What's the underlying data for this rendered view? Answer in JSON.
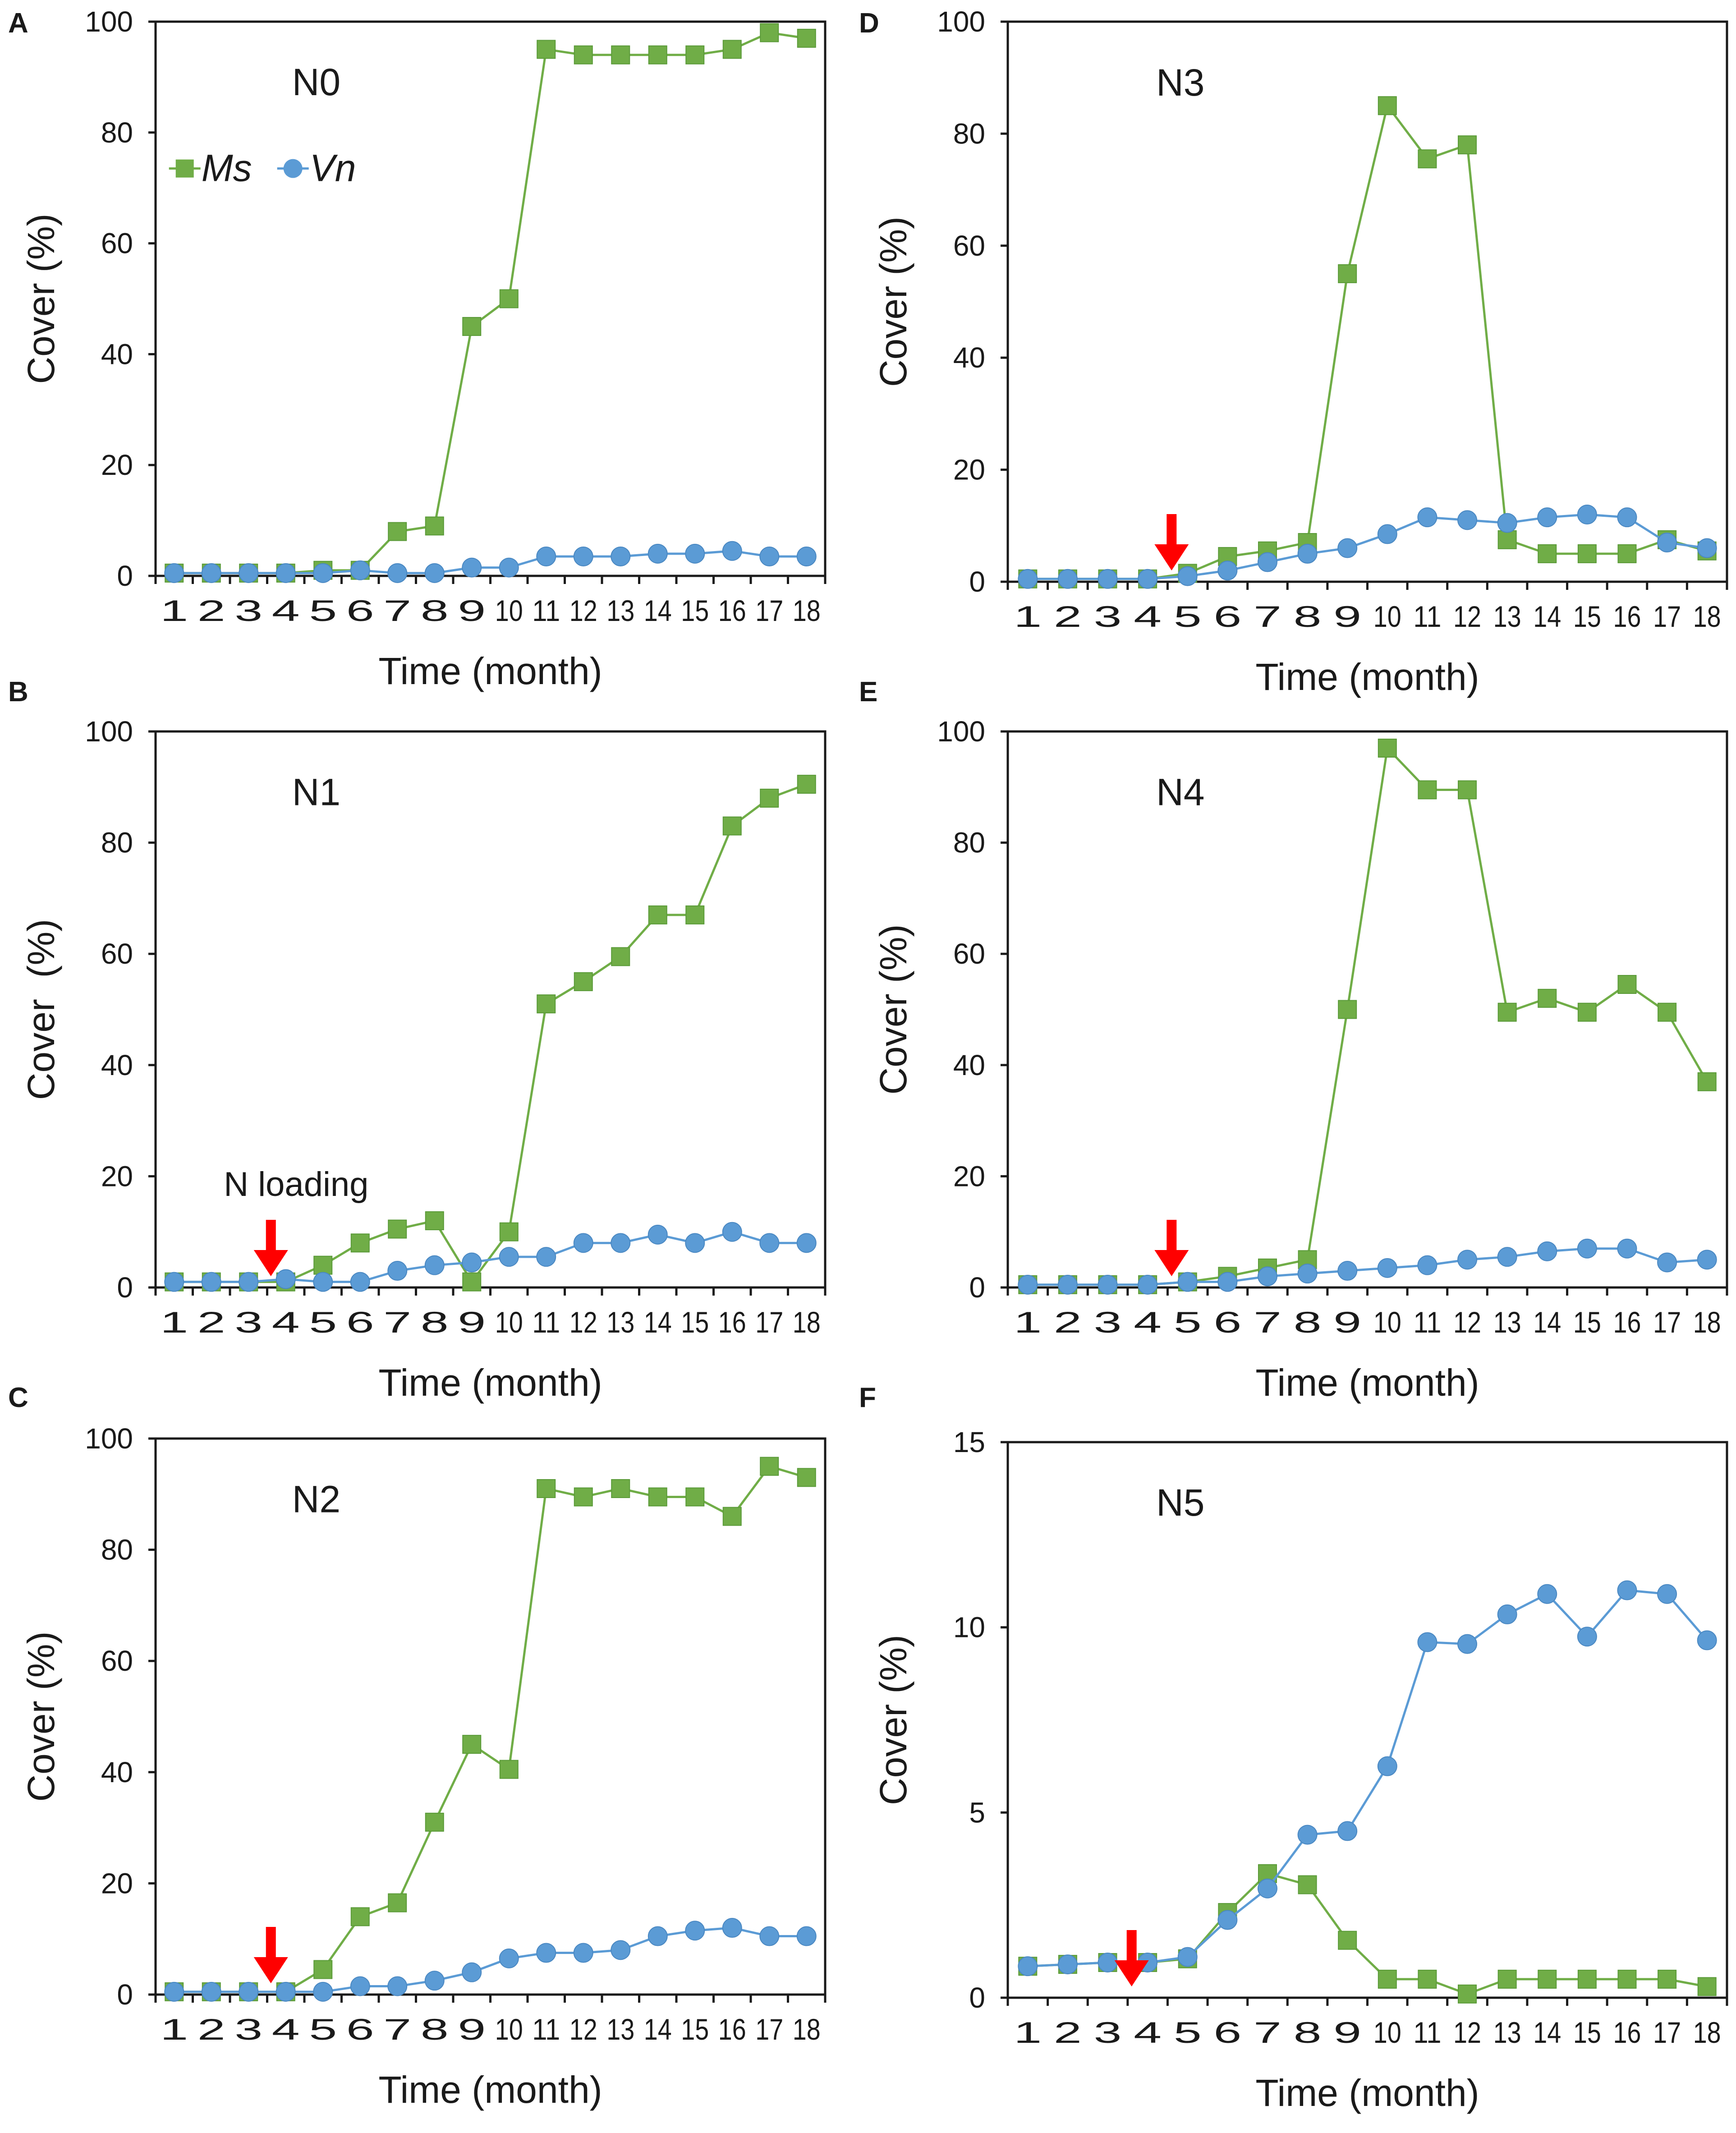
{
  "colors": {
    "ms": "#70ad47",
    "ms_edge": "#5a9a38",
    "vn": "#5b9bd5",
    "vn_edge": "#4a88c2",
    "arrow": "#ff0000",
    "axis": "#1a1a1a"
  },
  "legend": {
    "ms": "Ms",
    "vn": "Vn"
  },
  "annotation_text": "N loading",
  "chart_data": [
    {
      "type": "line",
      "panel": "A",
      "title": "N0",
      "xlabel": "Time (month)",
      "ylabel": "Cover (%)",
      "ylim": [
        0,
        100
      ],
      "yticks": [
        0,
        20,
        40,
        60,
        80,
        100
      ],
      "ytick_labels": [
        "0",
        "20",
        "40",
        "60",
        "80",
        "100"
      ],
      "categories": [
        "1",
        "2",
        "3",
        "4",
        "5",
        "6",
        "7",
        "8",
        "9",
        "10",
        "11",
        "12",
        "13",
        "14",
        "15",
        "16",
        "17",
        "18"
      ],
      "legend": true,
      "arrow_at": null,
      "series": [
        {
          "name": "Ms",
          "values": [
            0.5,
            0.5,
            0.5,
            0.5,
            1,
            1,
            8,
            9,
            45,
            50,
            95,
            94,
            94,
            94,
            94,
            95,
            98,
            97
          ]
        },
        {
          "name": "Vn",
          "values": [
            0.5,
            0.5,
            0.5,
            0.5,
            0.5,
            1,
            0.5,
            0.5,
            1.5,
            1.5,
            3.5,
            3.5,
            3.5,
            4,
            4,
            4.5,
            3.5,
            3.5
          ]
        }
      ]
    },
    {
      "type": "line",
      "panel": "B",
      "title": "N1",
      "xlabel": "Time (month)",
      "ylabel": "Cover  (%)",
      "ylim": [
        0,
        100
      ],
      "yticks": [
        0,
        20,
        40,
        60,
        80,
        100
      ],
      "ytick_labels": [
        "0",
        "20",
        "40",
        "60",
        "80",
        "100"
      ],
      "categories": [
        "1",
        "2",
        "3",
        "4",
        "5",
        "6",
        "7",
        "8",
        "9",
        "10",
        "11",
        "12",
        "13",
        "14",
        "15",
        "16",
        "17",
        "18"
      ],
      "legend": false,
      "arrow_at": 3.6,
      "annotation": "N loading",
      "series": [
        {
          "name": "Ms",
          "values": [
            1,
            1,
            1,
            1,
            4,
            8,
            10.5,
            12,
            1,
            10,
            51,
            55,
            59.5,
            67,
            67,
            83,
            88,
            90.5
          ]
        },
        {
          "name": "Vn",
          "values": [
            1,
            1,
            1,
            1.5,
            1,
            1,
            3,
            4,
            4.5,
            5.5,
            5.5,
            8,
            8,
            9.5,
            8,
            10,
            8,
            8
          ]
        }
      ]
    },
    {
      "type": "line",
      "panel": "C",
      "title": "N2",
      "xlabel": "Time (month)",
      "ylabel": "Cover (%)",
      "ylim": [
        0,
        100
      ],
      "yticks": [
        0,
        20,
        40,
        60,
        80,
        100
      ],
      "ytick_labels": [
        "0",
        "20",
        "40",
        "60",
        "80",
        "100"
      ],
      "categories": [
        "1",
        "2",
        "3",
        "4",
        "5",
        "6",
        "7",
        "8",
        "9",
        "10",
        "11",
        "12",
        "13",
        "14",
        "15",
        "16",
        "17",
        "18"
      ],
      "legend": false,
      "arrow_at": 3.6,
      "series": [
        {
          "name": "Ms",
          "values": [
            0.5,
            0.5,
            0.5,
            0.5,
            4.5,
            14,
            16.5,
            31,
            45,
            40.5,
            91,
            89.5,
            91,
            89.5,
            89.5,
            86,
            95,
            93
          ]
        },
        {
          "name": "Vn",
          "values": [
            0.5,
            0.5,
            0.5,
            0.5,
            0.5,
            1.5,
            1.5,
            2.5,
            4,
            6.5,
            7.5,
            7.5,
            8,
            10.5,
            11.5,
            12,
            10.5,
            10.5
          ]
        }
      ]
    },
    {
      "type": "line",
      "panel": "D",
      "title": "N3",
      "xlabel": "Time (month)",
      "ylabel": "Cover (%)",
      "ylim": [
        0,
        100
      ],
      "yticks": [
        0,
        20,
        40,
        60,
        80,
        100
      ],
      "ytick_labels": [
        "0",
        "20",
        "40",
        "60",
        "80",
        "100"
      ],
      "categories": [
        "1",
        "2",
        "3",
        "4",
        "5",
        "6",
        "7",
        "8",
        "9",
        "10",
        "11",
        "12",
        "13",
        "14",
        "15",
        "16",
        "17",
        "18"
      ],
      "legend": false,
      "arrow_at": 4.6,
      "series": [
        {
          "name": "Ms",
          "values": [
            0.5,
            0.5,
            0.5,
            0.5,
            1.5,
            4.5,
            5.5,
            7,
            55,
            85,
            75.5,
            78,
            7.5,
            5,
            5,
            5,
            7.5,
            5.5
          ]
        },
        {
          "name": "Vn",
          "values": [
            0.5,
            0.5,
            0.5,
            0.5,
            1,
            2,
            3.5,
            5,
            6,
            8.5,
            11.5,
            11,
            10.5,
            11.5,
            12,
            11.5,
            7,
            6
          ]
        }
      ]
    },
    {
      "type": "line",
      "panel": "E",
      "title": "N4",
      "xlabel": "Time (month)",
      "ylabel": "Cover (%)",
      "ylim": [
        0,
        100
      ],
      "yticks": [
        0,
        20,
        40,
        60,
        80,
        100
      ],
      "ytick_labels": [
        "0",
        "20",
        "40",
        "60",
        "80",
        "100"
      ],
      "categories": [
        "1",
        "2",
        "3",
        "4",
        "5",
        "6",
        "7",
        "8",
        "9",
        "10",
        "11",
        "12",
        "13",
        "14",
        "15",
        "16",
        "17",
        "18"
      ],
      "legend": false,
      "arrow_at": 4.6,
      "series": [
        {
          "name": "Ms",
          "values": [
            0.5,
            0.5,
            0.5,
            0.5,
            1,
            2,
            3.5,
            5,
            50,
            97,
            89.5,
            89.5,
            49.5,
            52,
            49.5,
            54.5,
            49.5,
            37
          ]
        },
        {
          "name": "Vn",
          "values": [
            0.5,
            0.5,
            0.5,
            0.5,
            1,
            1,
            2,
            2.5,
            3,
            3.5,
            4,
            5,
            5.5,
            6.5,
            7,
            7,
            4.5,
            5
          ]
        }
      ]
    },
    {
      "type": "line",
      "panel": "F",
      "title": "N5",
      "xlabel": "Time (month)",
      "ylabel": "Cover (%)",
      "ylim": [
        0,
        15
      ],
      "yticks": [
        0,
        5,
        10,
        15
      ],
      "ytick_labels": [
        "0",
        "5",
        "10",
        "15"
      ],
      "categories": [
        "1",
        "2",
        "3",
        "4",
        "5",
        "6",
        "7",
        "8",
        "9",
        "10",
        "11",
        "12",
        "13",
        "14",
        "15",
        "16",
        "17",
        "18"
      ],
      "legend": false,
      "arrow_at": 3.6,
      "series": [
        {
          "name": "Ms",
          "values": [
            0.85,
            0.9,
            0.95,
            0.95,
            1.05,
            2.3,
            3.35,
            3.05,
            1.55,
            0.5,
            0.5,
            0.1,
            0.5,
            0.5,
            0.5,
            0.5,
            0.5,
            0.3
          ]
        },
        {
          "name": "Vn",
          "values": [
            0.85,
            0.9,
            0.95,
            0.95,
            1.1,
            2.1,
            2.95,
            4.4,
            4.5,
            6.25,
            9.6,
            9.55,
            10.35,
            10.9,
            9.75,
            11,
            10.9,
            9.65
          ]
        }
      ]
    }
  ]
}
